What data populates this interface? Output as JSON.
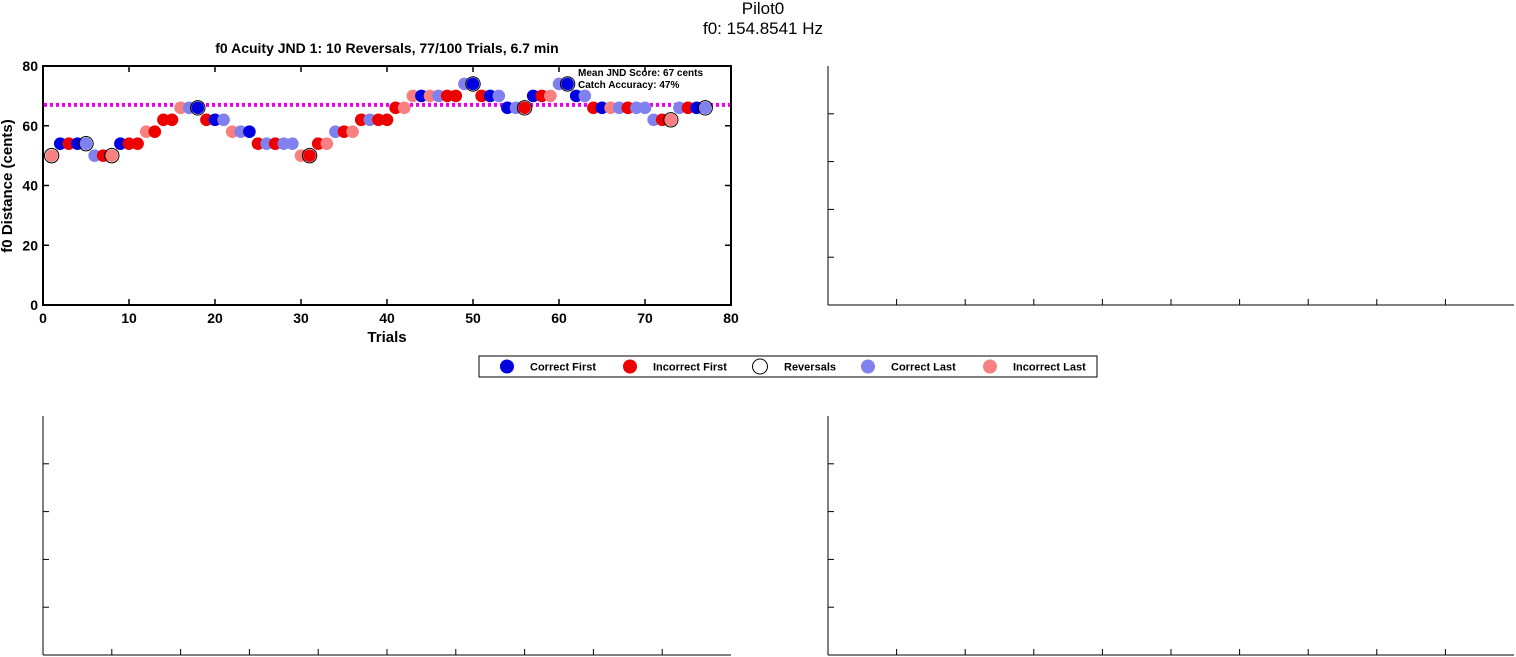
{
  "figure": {
    "title_line1": "Pilot0",
    "title_line2": "f0: 154.8541 Hz"
  },
  "colors": {
    "correct_first": "#0000e0",
    "incorrect_first": "#ee0000",
    "correct_last": "#8080ee",
    "incorrect_last": "#f88080",
    "mean_line": "#ee00ee"
  },
  "chart_data": [
    {
      "type": "scatter",
      "title": "f0 Acuity JND 1: 10 Reversals, 77/100 Trials, 6.7 min",
      "xlabel": "Trials",
      "ylabel": "f0 Distance (cents)",
      "xlim": [
        0,
        80
      ],
      "ylim": [
        0,
        80
      ],
      "xticks": [
        0,
        10,
        20,
        30,
        40,
        50,
        60,
        70,
        80
      ],
      "yticks": [
        0,
        20,
        40,
        60,
        80
      ],
      "grid": false,
      "mean_line": 67,
      "annotations": [
        "Mean JND Score: 67 cents",
        "Catch Accuracy: 47%"
      ],
      "legend": {
        "position": "below",
        "entries": [
          "Correct First",
          "Incorrect First",
          "Reversals",
          "Correct Last",
          "Incorrect Last"
        ]
      },
      "points": [
        {
          "x": 1,
          "y": 50,
          "c": "il"
        },
        {
          "x": 2,
          "y": 54,
          "c": "cf"
        },
        {
          "x": 3,
          "y": 54,
          "c": "if"
        },
        {
          "x": 4,
          "y": 54,
          "c": "cf"
        },
        {
          "x": 5,
          "y": 54,
          "c": "cl"
        },
        {
          "x": 6,
          "y": 50,
          "c": "cl"
        },
        {
          "x": 7,
          "y": 50,
          "c": "if"
        },
        {
          "x": 8,
          "y": 50,
          "c": "il"
        },
        {
          "x": 9,
          "y": 54,
          "c": "cf"
        },
        {
          "x": 10,
          "y": 54,
          "c": "if"
        },
        {
          "x": 11,
          "y": 54,
          "c": "if"
        },
        {
          "x": 12,
          "y": 58,
          "c": "il"
        },
        {
          "x": 13,
          "y": 58,
          "c": "if"
        },
        {
          "x": 14,
          "y": 62,
          "c": "if"
        },
        {
          "x": 15,
          "y": 62,
          "c": "if"
        },
        {
          "x": 16,
          "y": 66,
          "c": "il"
        },
        {
          "x": 17,
          "y": 66,
          "c": "cl"
        },
        {
          "x": 18,
          "y": 66,
          "c": "cf"
        },
        {
          "x": 19,
          "y": 62,
          "c": "if"
        },
        {
          "x": 20,
          "y": 62,
          "c": "cf"
        },
        {
          "x": 21,
          "y": 62,
          "c": "cl"
        },
        {
          "x": 22,
          "y": 58,
          "c": "il"
        },
        {
          "x": 23,
          "y": 58,
          "c": "cl"
        },
        {
          "x": 24,
          "y": 58,
          "c": "cf"
        },
        {
          "x": 25,
          "y": 54,
          "c": "if"
        },
        {
          "x": 26,
          "y": 54,
          "c": "cl"
        },
        {
          "x": 27,
          "y": 54,
          "c": "if"
        },
        {
          "x": 28,
          "y": 54,
          "c": "cl"
        },
        {
          "x": 29,
          "y": 54,
          "c": "cl"
        },
        {
          "x": 30,
          "y": 50,
          "c": "il"
        },
        {
          "x": 31,
          "y": 50,
          "c": "if"
        },
        {
          "x": 32,
          "y": 54,
          "c": "if"
        },
        {
          "x": 33,
          "y": 54,
          "c": "il"
        },
        {
          "x": 34,
          "y": 58,
          "c": "cl"
        },
        {
          "x": 35,
          "y": 58,
          "c": "if"
        },
        {
          "x": 36,
          "y": 58,
          "c": "il"
        },
        {
          "x": 37,
          "y": 62,
          "c": "if"
        },
        {
          "x": 38,
          "y": 62,
          "c": "cl"
        },
        {
          "x": 39,
          "y": 62,
          "c": "if"
        },
        {
          "x": 40,
          "y": 62,
          "c": "if"
        },
        {
          "x": 41,
          "y": 66,
          "c": "if"
        },
        {
          "x": 42,
          "y": 66,
          "c": "il"
        },
        {
          "x": 43,
          "y": 70,
          "c": "il"
        },
        {
          "x": 44,
          "y": 70,
          "c": "cf"
        },
        {
          "x": 45,
          "y": 70,
          "c": "il"
        },
        {
          "x": 46,
          "y": 70,
          "c": "cl"
        },
        {
          "x": 47,
          "y": 70,
          "c": "if"
        },
        {
          "x": 48,
          "y": 70,
          "c": "if"
        },
        {
          "x": 49,
          "y": 74,
          "c": "cl"
        },
        {
          "x": 50,
          "y": 74,
          "c": "cf"
        },
        {
          "x": 51,
          "y": 70,
          "c": "if"
        },
        {
          "x": 52,
          "y": 70,
          "c": "cf"
        },
        {
          "x": 53,
          "y": 70,
          "c": "cl"
        },
        {
          "x": 54,
          "y": 66,
          "c": "cf"
        },
        {
          "x": 55,
          "y": 66,
          "c": "cl"
        },
        {
          "x": 56,
          "y": 66,
          "c": "if"
        },
        {
          "x": 57,
          "y": 70,
          "c": "cf"
        },
        {
          "x": 58,
          "y": 70,
          "c": "if"
        },
        {
          "x": 59,
          "y": 70,
          "c": "il"
        },
        {
          "x": 60,
          "y": 74,
          "c": "cl"
        },
        {
          "x": 61,
          "y": 74,
          "c": "cf"
        },
        {
          "x": 62,
          "y": 70,
          "c": "cf"
        },
        {
          "x": 63,
          "y": 70,
          "c": "cl"
        },
        {
          "x": 64,
          "y": 66,
          "c": "if"
        },
        {
          "x": 65,
          "y": 66,
          "c": "cf"
        },
        {
          "x": 66,
          "y": 66,
          "c": "il"
        },
        {
          "x": 67,
          "y": 66,
          "c": "cl"
        },
        {
          "x": 68,
          "y": 66,
          "c": "if"
        },
        {
          "x": 69,
          "y": 66,
          "c": "cl"
        },
        {
          "x": 70,
          "y": 66,
          "c": "cl"
        },
        {
          "x": 71,
          "y": 62,
          "c": "cl"
        },
        {
          "x": 72,
          "y": 62,
          "c": "if"
        },
        {
          "x": 73,
          "y": 62,
          "c": "il"
        },
        {
          "x": 74,
          "y": 66,
          "c": "cl"
        },
        {
          "x": 75,
          "y": 66,
          "c": "if"
        },
        {
          "x": 76,
          "y": 66,
          "c": "cf"
        },
        {
          "x": 77,
          "y": 66,
          "c": "cl"
        }
      ],
      "reversals": [
        1,
        5,
        8,
        18,
        31,
        50,
        56,
        61,
        73,
        77
      ]
    },
    {
      "type": "scatter",
      "empty": true
    },
    {
      "type": "scatter",
      "empty": true
    },
    {
      "type": "scatter",
      "empty": true
    }
  ]
}
